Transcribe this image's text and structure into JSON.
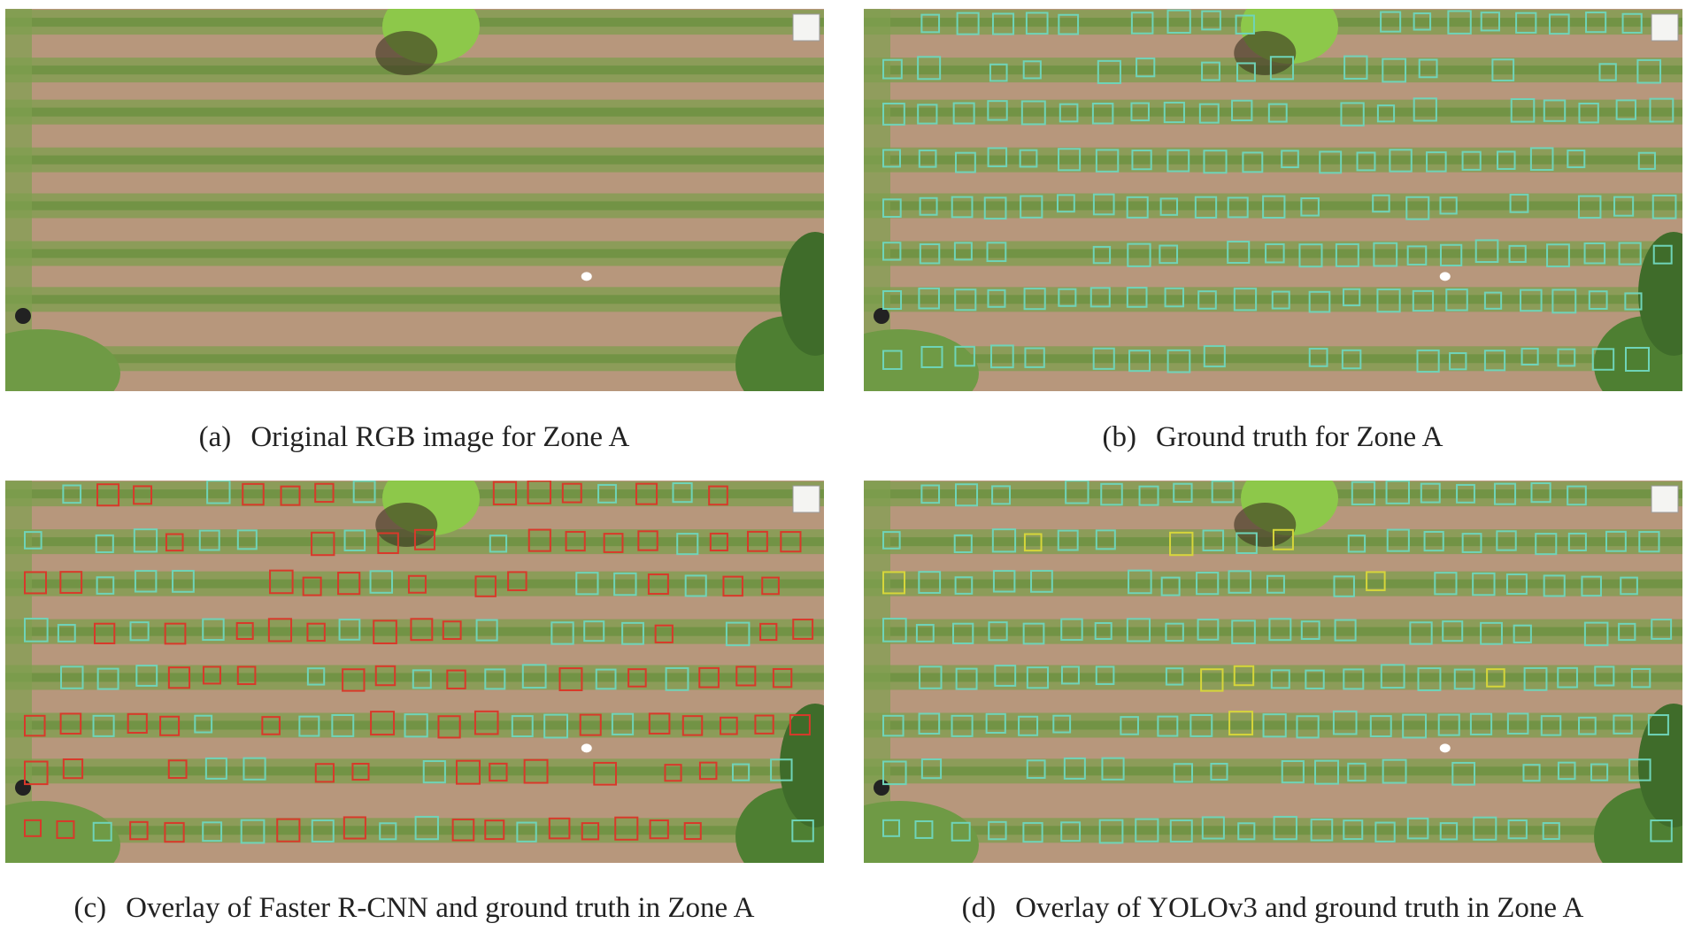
{
  "panels": [
    {
      "label": "(a)",
      "caption": "Original RGB image for Zone A"
    },
    {
      "label": "(b)",
      "caption": "Ground truth for Zone A"
    },
    {
      "label": "(c)",
      "caption": "Overlay of Faster R-CNN and ground truth in Zone A"
    },
    {
      "label": "(d)",
      "caption": "Overlay of YOLOv3 and ground truth in Zone A"
    }
  ]
}
